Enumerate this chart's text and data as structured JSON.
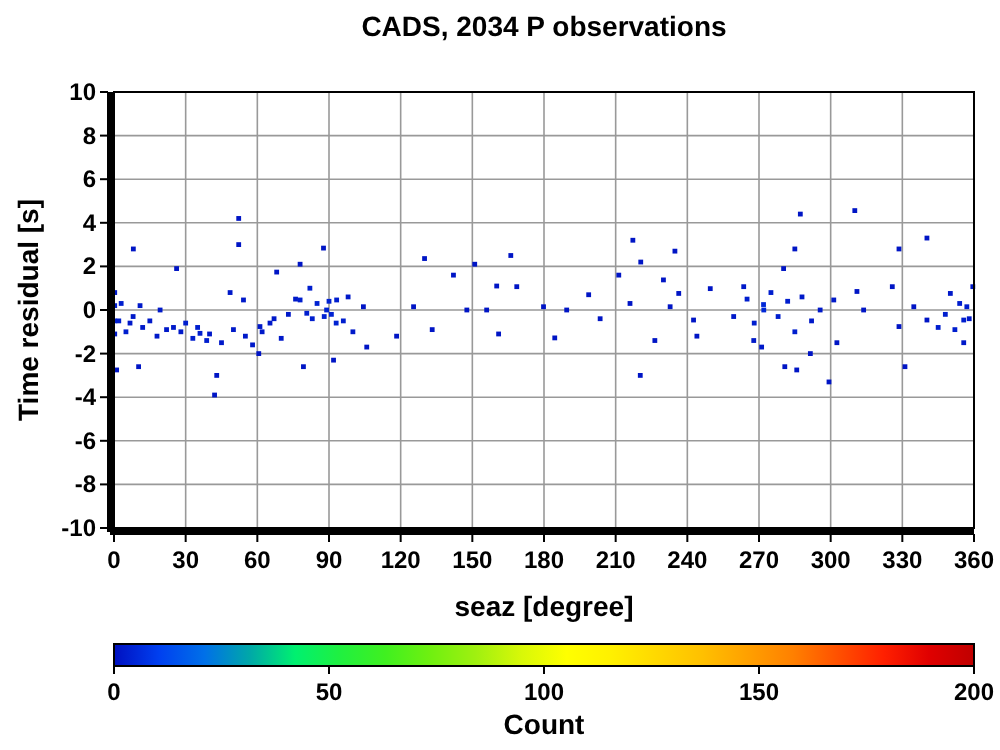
{
  "chart_data": {
    "type": "scatter",
    "title": "CADS, 2034 P observations",
    "xlabel": "seaz [degree]",
    "ylabel": "Time residual [s]",
    "clabel": "Count",
    "xlim": [
      0,
      360
    ],
    "xticks": [
      0,
      30,
      60,
      90,
      120,
      150,
      180,
      210,
      240,
      270,
      300,
      330,
      360
    ],
    "ylim": [
      -10,
      10
    ],
    "yticks": [
      -10,
      -8,
      -6,
      -4,
      -2,
      0,
      2,
      4,
      6,
      8,
      10
    ],
    "clim": [
      0,
      200
    ],
    "cticks": [
      0,
      50,
      100,
      150,
      200
    ],
    "grid": true,
    "marker": "square",
    "x": [
      52.2,
      52.2,
      8.1,
      26.2,
      0.3,
      0.3,
      0.3,
      0.3,
      6.7,
      10.9,
      19.3,
      10.3,
      1.1,
      24.9,
      36,
      38.8,
      43,
      42.1,
      48.6,
      54.2,
      61.1,
      60.6,
      65.3,
      68.1,
      77.9,
      77.9,
      80.7,
      79.3,
      87.7,
      89,
      93.2,
      91.9,
      104.4,
      105.8,
      118.3,
      125.4,
      130,
      133.2,
      142.1,
      147.7,
      151,
      160.2,
      166.1,
      168.6,
      161,
      156,
      179.8,
      189.5,
      184.5,
      198.7,
      203.5,
      211.3,
      217.2,
      220.5,
      216,
      220.3,
      226.4,
      230,
      234.8,
      232.8,
      236.4,
      244,
      242.6,
      249.6,
      287.3,
      310.1,
      340.3,
      328.6,
      285,
      280.3,
      271.9,
      263.6,
      259.4,
      267.8,
      271.1,
      280.8,
      285.8,
      291.5,
      299.3,
      295.6,
      302.6,
      301.3,
      311,
      313.8,
      325.8,
      328.6,
      331.1,
      334.8,
      340.3,
      350.1,
      355.7,
      357,
      359.5,
      355.7,
      2,
      3,
      5,
      8,
      12,
      15,
      18,
      22,
      28,
      30,
      33,
      35,
      40,
      45,
      50,
      55,
      58,
      62,
      67,
      70,
      73,
      76,
      82,
      83,
      85,
      88,
      90,
      91,
      93,
      96,
      98,
      100,
      265,
      268,
      272,
      275,
      278,
      282,
      285,
      288,
      292,
      345,
      348,
      352,
      354,
      358
    ],
    "values": [
      4.2,
      3.0,
      2.8,
      1.9,
      0.8,
      0.2,
      -0.5,
      -1.1,
      -0.6,
      0.2,
      0,
      -2.6,
      -2.75,
      -0.8,
      -1.07,
      -1.4,
      -3.0,
      -3.9,
      0.8,
      0.46,
      -0.76,
      -2.0,
      -0.6,
      1.74,
      2.1,
      0.46,
      -0.15,
      -2.6,
      2.84,
      0,
      0.46,
      -2.3,
      0.15,
      -1.7,
      -1.2,
      0.15,
      2.36,
      -0.9,
      1.6,
      0,
      2.1,
      1.1,
      2.5,
      1.07,
      -1.1,
      0,
      0.15,
      0,
      -1.28,
      0.7,
      -0.4,
      1.6,
      3.2,
      2.2,
      0.3,
      -3.0,
      -1.4,
      1.38,
      2.7,
      0.15,
      0.76,
      -1.2,
      -0.46,
      0.98,
      4.4,
      4.56,
      3.3,
      2.8,
      2.8,
      1.9,
      0.25,
      1.07,
      -0.3,
      -1.4,
      -1.7,
      -2.6,
      -2.75,
      -2.0,
      -3.3,
      0,
      -1.5,
      0.46,
      0.85,
      0,
      1.07,
      -0.76,
      -2.6,
      0.15,
      -0.46,
      0.76,
      -0.46,
      0.15,
      1.07,
      -1.5,
      -0.5,
      0.3,
      -1.0,
      -0.3,
      -0.8,
      -0.5,
      -1.2,
      -0.9,
      -1.0,
      -0.6,
      -1.3,
      -0.8,
      -1.1,
      -1.5,
      -0.9,
      -1.2,
      -1.6,
      -1.0,
      -0.4,
      -1.3,
      -0.2,
      0.5,
      1.0,
      -0.4,
      0.3,
      -0.3,
      0.4,
      -0.2,
      -0.6,
      -0.5,
      0.6,
      -1.0,
      0.5,
      -0.6,
      0.0,
      0.8,
      -0.3,
      0.4,
      -1.0,
      0.6,
      -0.5,
      -0.8,
      -0.2,
      -0.9,
      0.3,
      -0.4
    ],
    "cvalues": [
      1,
      1,
      1,
      1,
      2,
      3,
      3,
      2,
      2,
      2,
      2,
      1,
      1,
      2,
      3,
      3,
      1,
      1,
      2,
      2,
      2,
      1,
      2,
      1,
      1,
      3,
      3,
      1,
      1,
      4,
      3,
      1,
      1,
      1,
      1,
      1,
      1,
      1,
      1,
      1,
      1,
      1,
      1,
      1,
      1,
      1,
      1,
      1,
      1,
      1,
      1,
      1,
      1,
      1,
      1,
      1,
      1,
      1,
      1,
      1,
      1,
      1,
      1,
      1,
      1,
      1,
      1,
      1,
      1,
      1,
      5,
      2,
      2,
      2,
      2,
      1,
      1,
      1,
      1,
      2,
      1,
      2,
      1,
      1,
      1,
      1,
      1,
      1,
      1,
      2,
      3,
      3,
      2,
      2,
      3,
      3,
      3,
      2,
      2,
      2,
      2,
      2,
      2,
      3,
      3,
      3,
      2,
      2,
      2,
      2,
      2,
      2,
      2,
      2,
      2,
      2,
      3,
      3,
      4,
      4,
      4,
      4,
      4,
      3,
      2,
      2,
      3,
      3,
      5,
      3,
      3,
      3,
      3,
      2,
      2,
      3,
      3,
      3,
      3,
      2
    ]
  }
}
